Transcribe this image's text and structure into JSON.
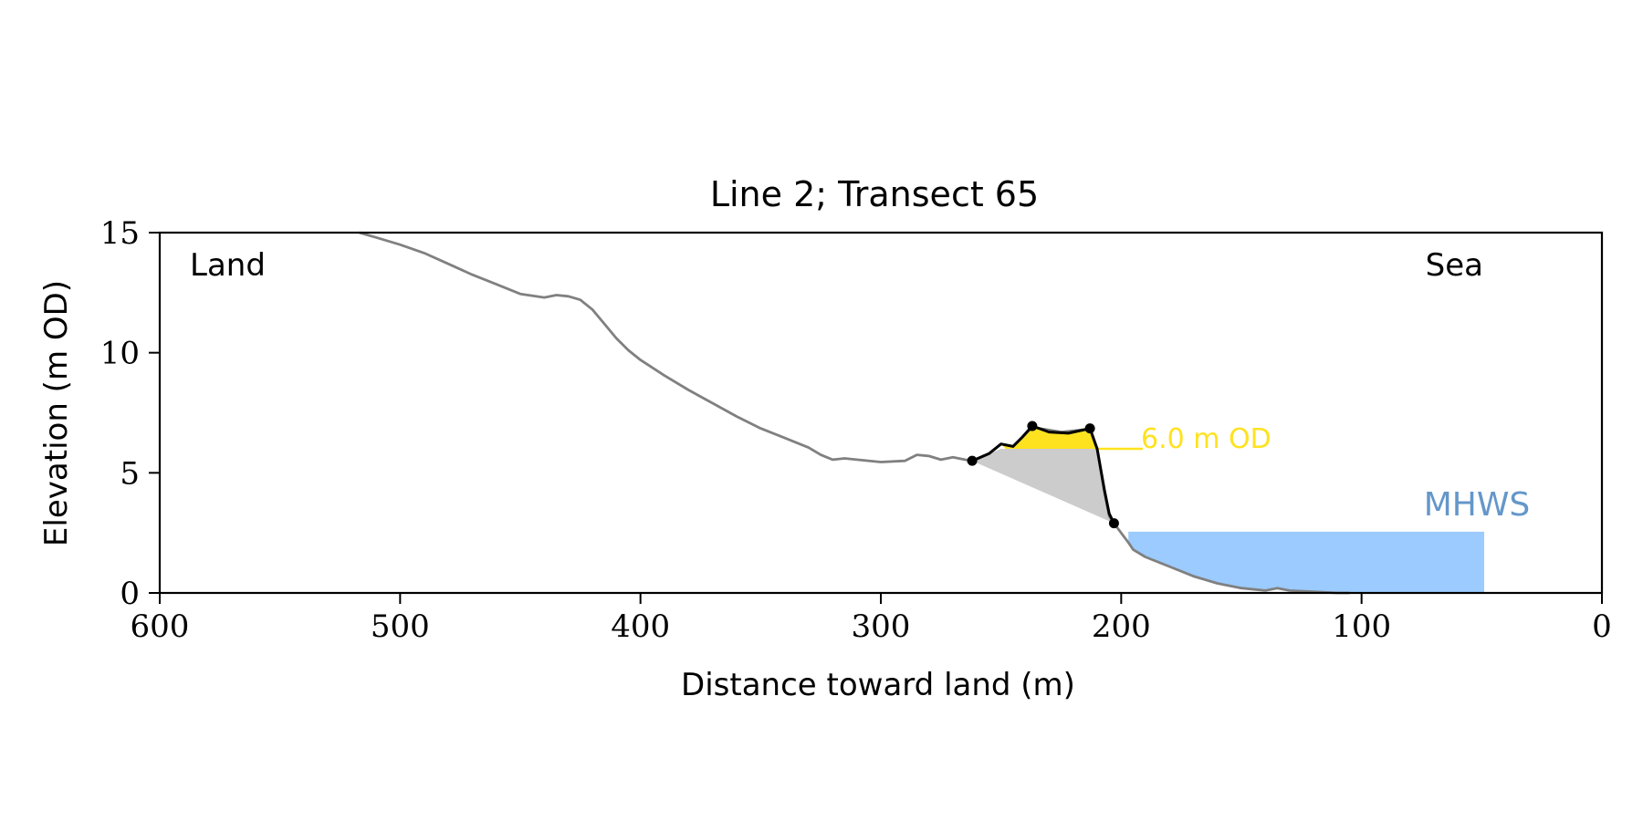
{
  "chart_data": {
    "type": "line",
    "title": "Line 2; Transect 65",
    "xlabel": "Distance toward land (m)",
    "ylabel": "Elevation (m OD)",
    "xlim": [
      600,
      0
    ],
    "ylim": [
      0,
      15
    ],
    "x_ticks": [
      "600",
      "500",
      "400",
      "300",
      "200",
      "100",
      "0"
    ],
    "y_ticks": [
      "0",
      "5",
      "10",
      "15"
    ],
    "grid": false,
    "corner_labels": {
      "left": "Land",
      "right": "Sea"
    },
    "profile": {
      "color": "#808080",
      "x": [
        517,
        510,
        500,
        490,
        480,
        470,
        460,
        450,
        440,
        435,
        430,
        425,
        420,
        415,
        410,
        405,
        400,
        390,
        380,
        370,
        360,
        350,
        340,
        330,
        325,
        320,
        315,
        310,
        300,
        290,
        285,
        280,
        275,
        270,
        265,
        262,
        255,
        250,
        245,
        241,
        237,
        225,
        215,
        213,
        210,
        207,
        205,
        203,
        200,
        197,
        195,
        190,
        180,
        170,
        160,
        150,
        140,
        135,
        130,
        120,
        110,
        105
      ],
      "y": [
        15.0,
        14.8,
        14.5,
        14.15,
        13.7,
        13.25,
        12.85,
        12.45,
        12.3,
        12.4,
        12.35,
        12.2,
        11.8,
        11.2,
        10.6,
        10.1,
        9.7,
        9.05,
        8.45,
        7.9,
        7.35,
        6.85,
        6.45,
        6.05,
        5.75,
        5.55,
        5.6,
        5.55,
        5.45,
        5.5,
        5.75,
        5.7,
        5.55,
        5.65,
        5.55,
        5.5,
        5.8,
        6.2,
        6.1,
        6.5,
        6.9,
        6.7,
        6.8,
        6.85,
        6.0,
        4.2,
        3.2,
        2.9,
        2.5,
        2.1,
        1.8,
        1.5,
        1.1,
        0.7,
        0.4,
        0.2,
        0.1,
        0.2,
        0.1,
        0.05,
        0.0,
        0.0
      ]
    },
    "feature": {
      "color": "#000000",
      "x": [
        262,
        255,
        250,
        245,
        241,
        237,
        230,
        222,
        215,
        213,
        210,
        207,
        205,
        203
      ],
      "y": [
        5.5,
        5.8,
        6.2,
        6.1,
        6.5,
        6.95,
        6.7,
        6.65,
        6.8,
        6.85,
        6.0,
        4.3,
        3.3,
        2.9
      ],
      "markers": [
        {
          "x": 262,
          "y": 5.5
        },
        {
          "x": 237,
          "y": 6.95
        },
        {
          "x": 213,
          "y": 6.85
        },
        {
          "x": 203,
          "y": 2.9
        }
      ]
    },
    "volume_fill": {
      "color": "#cccccc",
      "x": [
        262,
        203
      ],
      "y": [
        5.5,
        2.9
      ]
    },
    "threshold": {
      "value": 6.0,
      "label": "6.0 m OD",
      "color": "#ffe21f",
      "x_end": 191
    },
    "mhws": {
      "label": "MHWS",
      "value": 2.55,
      "x_start": 197,
      "x_end": 49,
      "fill_color": "#9bcbff",
      "label_color": "#6497c9"
    }
  }
}
